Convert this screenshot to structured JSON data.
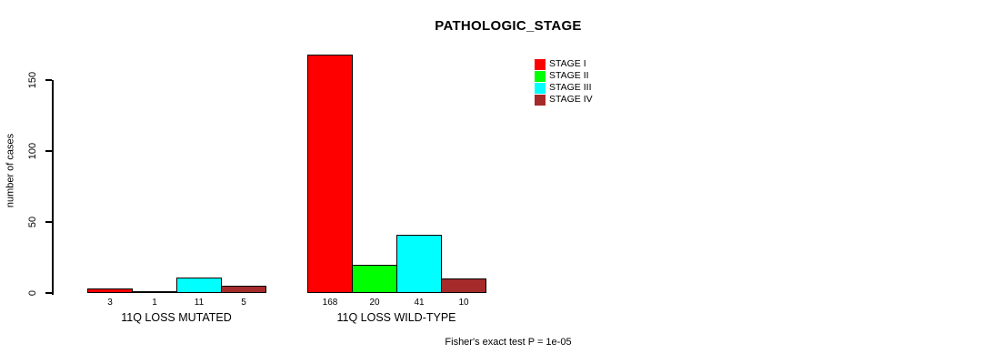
{
  "chart_data": {
    "type": "bar",
    "title": "PATHOLOGIC_STAGE",
    "ylabel": "number of cases",
    "yticks": [
      0,
      50,
      100,
      150
    ],
    "ylim": [
      0,
      175
    ],
    "grid": false,
    "legend_position": "top-right",
    "legend": [
      {
        "label": "STAGE I",
        "color": "#FF0000"
      },
      {
        "label": "STAGE II",
        "color": "#00FF00"
      },
      {
        "label": "STAGE III",
        "color": "#00FFFF"
      },
      {
        "label": "STAGE IV",
        "color": "#A52A2A"
      }
    ],
    "categories": [
      "11Q LOSS MUTATED",
      "11Q LOSS WILD-TYPE"
    ],
    "series": [
      {
        "name": "STAGE I",
        "values": [
          3,
          168
        ]
      },
      {
        "name": "STAGE II",
        "values": [
          1,
          20
        ]
      },
      {
        "name": "STAGE III",
        "values": [
          11,
          41
        ]
      },
      {
        "name": "STAGE IV",
        "values": [
          5,
          10
        ]
      }
    ],
    "annotation": "Fisher's exact test P = 1e-05"
  }
}
